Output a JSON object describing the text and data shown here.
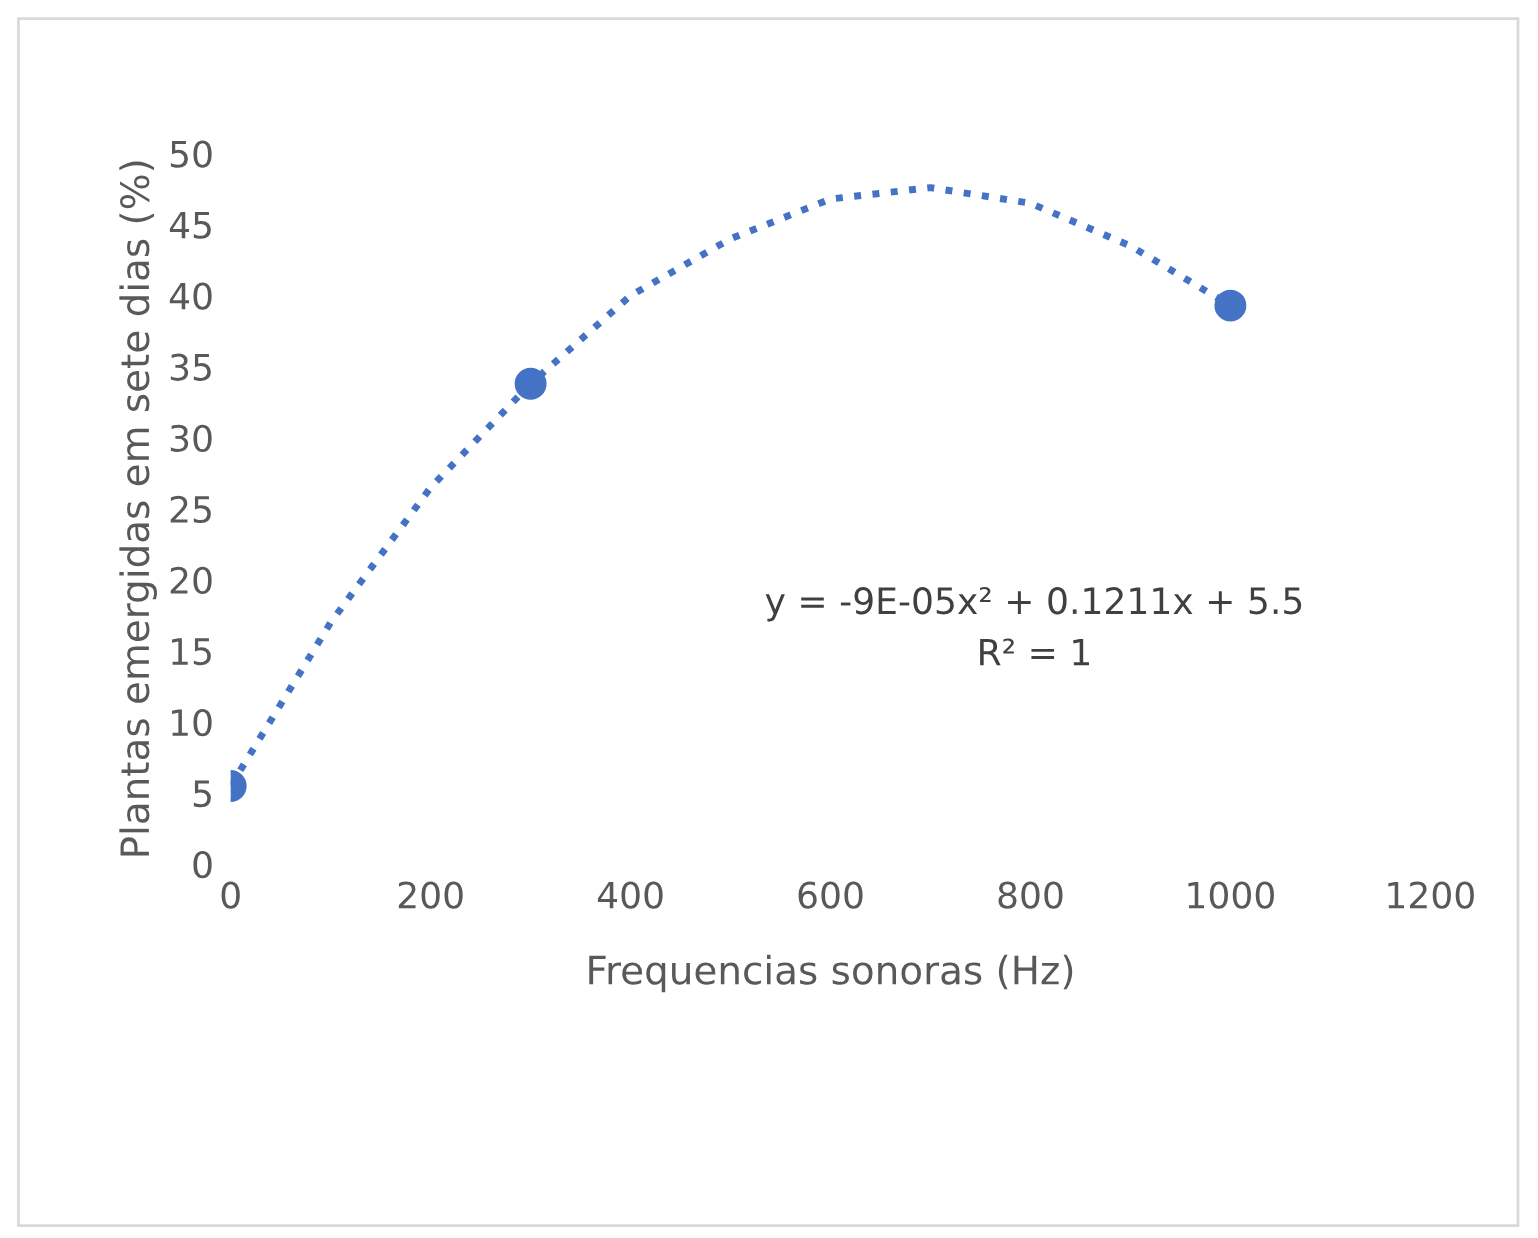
{
  "chart_data": {
    "type": "scatter",
    "xlabel": "Frequencias sonoras (Hz)",
    "ylabel": "Plantas emergidas em sete dias (%)",
    "x": [
      0,
      300,
      1000
    ],
    "series": [
      {
        "color": "#4472c4",
        "marker": "circle",
        "values": [
          5.5,
          33.8,
          39.3
        ]
      },
      {
        "type": "line",
        "color": "#4472c4",
        "line_style": "dotted",
        "marker": "none",
        "x": [
          0,
          100,
          200,
          300,
          400,
          500,
          600,
          700,
          800,
          900,
          1000
        ],
        "values": [
          5.5,
          17,
          26.5,
          33.8,
          40,
          44,
          46.8,
          47.6,
          46.5,
          43.5,
          39.3
        ]
      }
    ],
    "xlim": [
      0,
      1200
    ],
    "xticks": [
      0,
      200,
      400,
      600,
      800,
      1000,
      1200
    ],
    "ylim": [
      0,
      50
    ],
    "yticks": [
      0,
      5,
      10,
      15,
      20,
      25,
      30,
      35,
      40,
      45,
      50
    ],
    "annotations": [
      "y = -9E-05x² + 0.1211x + 5.5\nR² = 1"
    ],
    "grid": false,
    "legend": false
  }
}
